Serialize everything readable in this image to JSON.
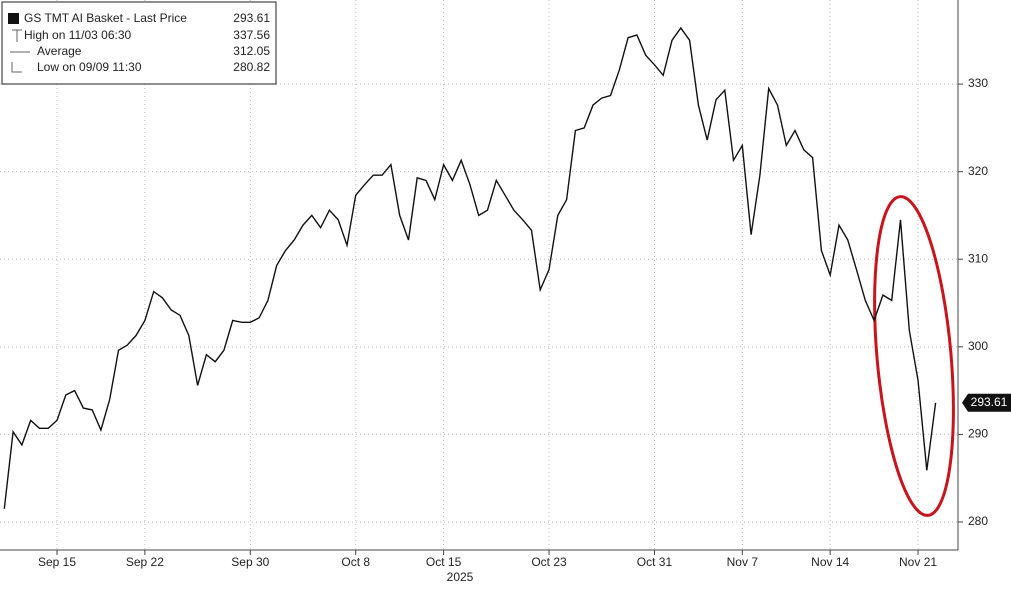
{
  "chart_data": {
    "type": "line",
    "xlabel": "2025",
    "categories": [
      null,
      null,
      null,
      null,
      null,
      null,
      "Sep 15",
      null,
      null,
      null,
      null,
      null,
      null,
      null,
      null,
      null,
      "Sep 22",
      null,
      null,
      null,
      null,
      null,
      null,
      null,
      null,
      null,
      null,
      null,
      "Sep 30",
      null,
      null,
      null,
      null,
      null,
      null,
      null,
      null,
      null,
      null,
      null,
      "Oct 8",
      null,
      null,
      null,
      null,
      null,
      null,
      null,
      null,
      null,
      "Oct 15",
      null,
      null,
      null,
      null,
      null,
      null,
      null,
      null,
      null,
      null,
      null,
      "Oct 23",
      null,
      null,
      null,
      null,
      null,
      null,
      null,
      null,
      null,
      null,
      null,
      "Oct 31",
      null,
      null,
      null,
      null,
      null,
      null,
      null,
      null,
      null,
      "Nov 7",
      null,
      null,
      null,
      null,
      null,
      null,
      null,
      null,
      null,
      "Nov 14",
      null,
      null,
      null,
      null,
      null,
      null,
      null,
      null,
      null,
      "Nov 21",
      null,
      null
    ],
    "series": [
      {
        "name": "GS TMT AI Basket - Last Price",
        "color": "#111111",
        "values": [
          281.5,
          290.3,
          288.8,
          291.6,
          290.7,
          290.7,
          291.6,
          294.5,
          295,
          293,
          292.8,
          290.5,
          294,
          299.6,
          300.2,
          301.3,
          303,
          306.3,
          305.6,
          304.2,
          303.6,
          301.3,
          295.6,
          299.1,
          298.3,
          299.6,
          303,
          302.8,
          302.8,
          303.3,
          305.3,
          309.3,
          311,
          312.2,
          313.9,
          315,
          313.6,
          315.6,
          314.5,
          311.6,
          317.3,
          318.5,
          319.6,
          319.6,
          320.8,
          315,
          312.2,
          319.3,
          319,
          316.8,
          320.8,
          319,
          321.3,
          318.5,
          315,
          315.6,
          319,
          317.3,
          315.6,
          314.5,
          313.3,
          306.5,
          308.8,
          315,
          316.8,
          324.7,
          325,
          327.6,
          328.4,
          328.7,
          331.6,
          335.3,
          335.6,
          333.3,
          332.2,
          331,
          335,
          336.4,
          335,
          327.6,
          323.6,
          328.2,
          329.3,
          321.3,
          323,
          312.8,
          319.6,
          329.5,
          327.6,
          323,
          324.7,
          322.5,
          321.6,
          311,
          308.2,
          313.9,
          312.2,
          308.8,
          305.3,
          303,
          305.9,
          305.3,
          314.5,
          301.9,
          296.2,
          285.9,
          293.61
        ]
      }
    ],
    "stats": [
      {
        "label": "High on 11/03 06:30",
        "value": "337.56"
      },
      {
        "label": "Average",
        "value": "312.05"
      },
      {
        "label": "Low on 09/09 11:30",
        "value": "280.82"
      }
    ],
    "ylim": [
      276.8,
      339.6
    ],
    "yticks": [
      280,
      290,
      300,
      310,
      320,
      330
    ],
    "grid": true
  }
}
